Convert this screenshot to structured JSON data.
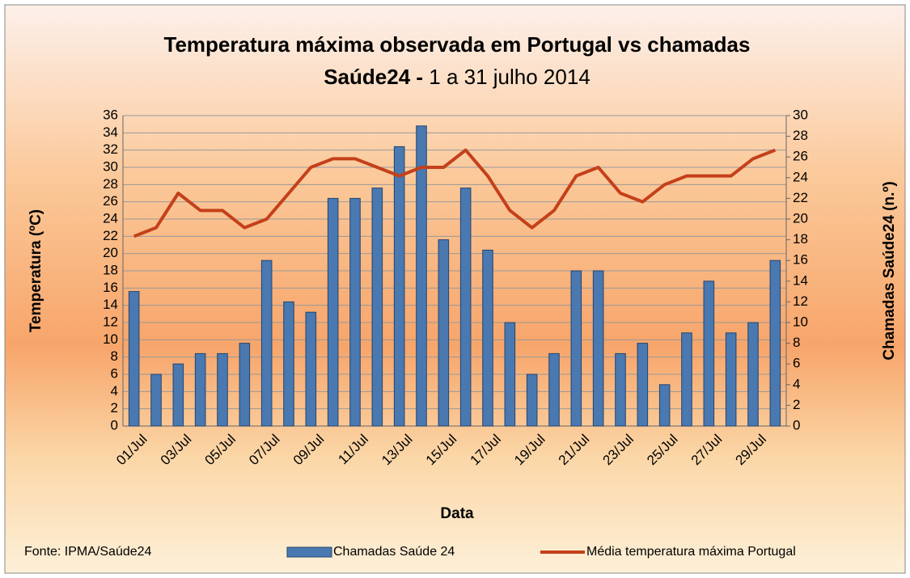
{
  "chart_data": {
    "type": "bar_line",
    "title": "Temperatura máxima observada em Portugal vs chamadas",
    "subtitle_bold": "Saúde24 -",
    "subtitle": "1 a 31 julho 2014",
    "source": "Fonte: IPMA/Saúde24",
    "xlabel": "Data",
    "ylabel": "Temperatura (ºC)",
    "y2label": "Chamadas Saúde24 (n.º)",
    "categories": [
      "01/Jul",
      null,
      "03/Jul",
      null,
      "05/Jul",
      null,
      "07/Jul",
      null,
      "09/Jul",
      null,
      "11/Jul",
      null,
      "13/Jul",
      null,
      "15/Jul",
      null,
      "17/Jul",
      null,
      "19/Jul",
      null,
      "21/Jul",
      null,
      "23/Jul",
      null,
      "25/Jul",
      null,
      "27/Jul",
      null,
      "29/Jul",
      null
    ],
    "series": [
      {
        "name": "Chamadas Saúde 24",
        "type": "bar",
        "axis": "y2",
        "color": "#4a78b0",
        "values": [
          13,
          5,
          6,
          7,
          7,
          8,
          16,
          12,
          11,
          22,
          22,
          23,
          27,
          29,
          18,
          23,
          17,
          10,
          5,
          7,
          15,
          15,
          7,
          8,
          4,
          9,
          14,
          9,
          10,
          16
        ]
      },
      {
        "name": "Média temperatura máxima Portugal",
        "type": "line",
        "axis": "y",
        "color": "#c4401a",
        "values": [
          22,
          23,
          27,
          25,
          25,
          23,
          24,
          27,
          30,
          31,
          31,
          30,
          29,
          30,
          30,
          32,
          29,
          25,
          23,
          25,
          29,
          30,
          27,
          26,
          28,
          29,
          29,
          29,
          31,
          32
        ]
      }
    ],
    "ylim": [
      0,
      36
    ],
    "yticks": [
      0,
      2,
      4,
      6,
      8,
      10,
      12,
      14,
      16,
      18,
      20,
      22,
      24,
      26,
      28,
      30,
      32,
      34,
      36
    ],
    "y2lim": [
      0,
      30
    ],
    "y2ticks": [
      0,
      2,
      4,
      6,
      8,
      10,
      12,
      14,
      16,
      18,
      20,
      22,
      24,
      26,
      28,
      30
    ],
    "grid": true
  }
}
